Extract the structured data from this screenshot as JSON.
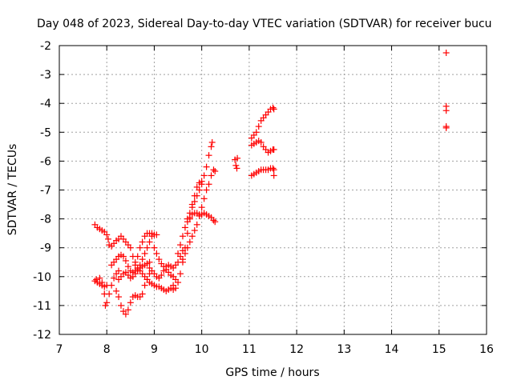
{
  "chart_data": {
    "type": "scatter",
    "title": "Day 048 of 2023, Sidereal Day-to-day VTEC variation (SDTVAR) for receiver bucu",
    "xlabel": "GPS time / hours",
    "ylabel": "SDTVAR / TECUs",
    "xlim": [
      7,
      16
    ],
    "ylim": [
      -12,
      -2
    ],
    "xticks": [
      7,
      8,
      9,
      10,
      11,
      12,
      13,
      14,
      15,
      16
    ],
    "yticks": [
      -2,
      -3,
      -4,
      -5,
      -6,
      -7,
      -8,
      -9,
      -10,
      -11,
      -12
    ],
    "grid": true,
    "marker": "+",
    "color": "#ff0000",
    "series": [
      {
        "name": "SDTVAR",
        "points": [
          [
            7.75,
            -8.2
          ],
          [
            7.8,
            -8.3
          ],
          [
            7.85,
            -8.35
          ],
          [
            7.9,
            -8.4
          ],
          [
            7.95,
            -8.45
          ],
          [
            8.0,
            -8.55
          ],
          [
            8.03,
            -8.7
          ],
          [
            7.75,
            -10.15
          ],
          [
            7.8,
            -10.2
          ],
          [
            7.85,
            -10.25
          ],
          [
            7.9,
            -10.3
          ],
          [
            7.95,
            -10.35
          ],
          [
            8.0,
            -10.3
          ],
          [
            7.78,
            -10.1
          ],
          [
            7.85,
            -10.05
          ],
          [
            7.9,
            -10.2
          ],
          [
            7.95,
            -10.6
          ],
          [
            7.97,
            -11.0
          ],
          [
            8.0,
            -10.9
          ],
          [
            8.05,
            -10.6
          ],
          [
            8.1,
            -10.3
          ],
          [
            8.15,
            -10.05
          ],
          [
            8.2,
            -9.9
          ],
          [
            8.25,
            -9.8
          ],
          [
            8.2,
            -10.5
          ],
          [
            8.25,
            -10.7
          ],
          [
            8.3,
            -11.0
          ],
          [
            8.35,
            -11.2
          ],
          [
            8.4,
            -11.3
          ],
          [
            8.45,
            -11.15
          ],
          [
            8.5,
            -10.9
          ],
          [
            8.55,
            -10.7
          ],
          [
            8.6,
            -10.65
          ],
          [
            8.65,
            -10.7
          ],
          [
            8.7,
            -10.7
          ],
          [
            8.75,
            -10.6
          ],
          [
            8.8,
            -10.3
          ],
          [
            8.85,
            -10.1
          ],
          [
            8.9,
            -9.9
          ],
          [
            8.05,
            -8.9
          ],
          [
            8.1,
            -8.95
          ],
          [
            8.15,
            -8.85
          ],
          [
            8.2,
            -8.75
          ],
          [
            8.25,
            -8.7
          ],
          [
            8.3,
            -8.6
          ],
          [
            8.35,
            -8.7
          ],
          [
            8.4,
            -8.8
          ],
          [
            8.45,
            -8.9
          ],
          [
            8.5,
            -9.0
          ],
          [
            8.55,
            -9.3
          ],
          [
            8.6,
            -9.5
          ],
          [
            8.65,
            -9.7
          ],
          [
            8.7,
            -9.8
          ],
          [
            8.75,
            -9.9
          ],
          [
            8.8,
            -10.0
          ],
          [
            8.85,
            -10.1
          ],
          [
            8.9,
            -10.2
          ],
          [
            8.95,
            -10.25
          ],
          [
            9.0,
            -10.3
          ],
          [
            9.05,
            -10.35
          ],
          [
            9.1,
            -10.35
          ],
          [
            9.15,
            -10.4
          ],
          [
            9.2,
            -10.45
          ],
          [
            9.25,
            -10.5
          ],
          [
            9.3,
            -10.45
          ],
          [
            9.35,
            -10.4
          ],
          [
            9.4,
            -10.3
          ],
          [
            8.1,
            -9.6
          ],
          [
            8.15,
            -9.5
          ],
          [
            8.2,
            -9.4
          ],
          [
            8.25,
            -9.3
          ],
          [
            8.3,
            -9.25
          ],
          [
            8.35,
            -9.3
          ],
          [
            8.4,
            -9.45
          ],
          [
            8.45,
            -9.65
          ],
          [
            8.5,
            -9.8
          ],
          [
            8.55,
            -9.85
          ],
          [
            8.6,
            -9.8
          ],
          [
            8.65,
            -9.75
          ],
          [
            8.7,
            -9.7
          ],
          [
            8.75,
            -9.65
          ],
          [
            8.8,
            -9.6
          ],
          [
            8.85,
            -9.55
          ],
          [
            8.9,
            -9.5
          ],
          [
            8.25,
            -10.1
          ],
          [
            8.3,
            -10.0
          ],
          [
            8.35,
            -9.9
          ],
          [
            8.4,
            -9.85
          ],
          [
            8.45,
            -9.95
          ],
          [
            8.5,
            -10.05
          ],
          [
            8.55,
            -10.0
          ],
          [
            8.6,
            -9.9
          ],
          [
            8.65,
            -9.8
          ],
          [
            8.7,
            -9.6
          ],
          [
            8.75,
            -9.4
          ],
          [
            8.8,
            -9.2
          ],
          [
            8.85,
            -9.0
          ],
          [
            8.9,
            -8.8
          ],
          [
            8.95,
            -8.6
          ],
          [
            9.0,
            -8.55
          ],
          [
            9.05,
            -8.55
          ],
          [
            8.6,
            -9.6
          ],
          [
            8.65,
            -9.3
          ],
          [
            8.7,
            -9.0
          ],
          [
            8.75,
            -8.8
          ],
          [
            8.8,
            -8.6
          ],
          [
            8.85,
            -8.5
          ],
          [
            8.9,
            -8.5
          ],
          [
            8.95,
            -8.5
          ],
          [
            8.9,
            -9.7
          ],
          [
            8.95,
            -9.8
          ],
          [
            9.0,
            -9.9
          ],
          [
            9.05,
            -10.0
          ],
          [
            9.1,
            -10.05
          ],
          [
            9.15,
            -9.95
          ],
          [
            9.2,
            -9.8
          ],
          [
            9.25,
            -9.65
          ],
          [
            9.3,
            -9.6
          ],
          [
            9.35,
            -9.65
          ],
          [
            9.4,
            -9.7
          ],
          [
            9.45,
            -9.6
          ],
          [
            9.5,
            -9.5
          ],
          [
            9.55,
            -9.3
          ],
          [
            9.6,
            -9.1
          ],
          [
            9.0,
            -9.0
          ],
          [
            9.05,
            -9.2
          ],
          [
            9.1,
            -9.4
          ],
          [
            9.15,
            -9.55
          ],
          [
            9.2,
            -9.65
          ],
          [
            9.25,
            -9.75
          ],
          [
            9.3,
            -9.85
          ],
          [
            9.35,
            -9.95
          ],
          [
            9.4,
            -10.0
          ],
          [
            9.45,
            -10.1
          ],
          [
            9.4,
            -10.45
          ],
          [
            9.45,
            -10.4
          ],
          [
            9.5,
            -10.2
          ],
          [
            9.55,
            -9.9
          ],
          [
            9.6,
            -9.5
          ],
          [
            9.65,
            -9.0
          ],
          [
            9.7,
            -8.5
          ],
          [
            9.75,
            -8.0
          ],
          [
            9.8,
            -7.5
          ],
          [
            9.85,
            -7.2
          ],
          [
            9.9,
            -6.9
          ],
          [
            9.95,
            -6.75
          ],
          [
            10.0,
            -6.7
          ],
          [
            9.5,
            -9.2
          ],
          [
            9.55,
            -8.9
          ],
          [
            9.6,
            -8.6
          ],
          [
            9.65,
            -8.3
          ],
          [
            9.7,
            -8.0
          ],
          [
            9.75,
            -7.8
          ],
          [
            9.8,
            -7.6
          ],
          [
            9.85,
            -7.4
          ],
          [
            9.9,
            -7.2
          ],
          [
            9.95,
            -7.0
          ],
          [
            10.0,
            -6.8
          ],
          [
            10.05,
            -6.5
          ],
          [
            10.1,
            -6.2
          ],
          [
            10.15,
            -5.8
          ],
          [
            10.2,
            -5.5
          ],
          [
            10.22,
            -5.35
          ],
          [
            9.7,
            -8.1
          ],
          [
            9.75,
            -7.95
          ],
          [
            9.8,
            -7.85
          ],
          [
            9.85,
            -7.8
          ],
          [
            9.9,
            -7.8
          ],
          [
            9.95,
            -7.85
          ],
          [
            10.0,
            -7.85
          ],
          [
            10.05,
            -7.8
          ],
          [
            10.1,
            -7.85
          ],
          [
            10.15,
            -7.9
          ],
          [
            10.2,
            -7.95
          ],
          [
            10.25,
            -8.05
          ],
          [
            10.28,
            -8.1
          ],
          [
            9.6,
            -9.4
          ],
          [
            9.65,
            -9.2
          ],
          [
            9.7,
            -9.0
          ],
          [
            9.75,
            -8.8
          ],
          [
            9.8,
            -8.6
          ],
          [
            9.85,
            -8.4
          ],
          [
            9.9,
            -8.2
          ],
          [
            9.95,
            -7.9
          ],
          [
            10.0,
            -7.6
          ],
          [
            10.05,
            -7.3
          ],
          [
            10.1,
            -7.0
          ],
          [
            10.15,
            -6.8
          ],
          [
            10.2,
            -6.5
          ],
          [
            10.25,
            -6.3
          ],
          [
            10.28,
            -6.35
          ],
          [
            10.7,
            -5.95
          ],
          [
            10.72,
            -6.15
          ],
          [
            10.74,
            -6.25
          ],
          [
            10.75,
            -5.9
          ],
          [
            11.05,
            -5.2
          ],
          [
            11.1,
            -5.1
          ],
          [
            11.15,
            -5.0
          ],
          [
            11.2,
            -4.8
          ],
          [
            11.25,
            -4.6
          ],
          [
            11.3,
            -4.5
          ],
          [
            11.35,
            -4.4
          ],
          [
            11.4,
            -4.3
          ],
          [
            11.45,
            -4.2
          ],
          [
            11.5,
            -4.15
          ],
          [
            11.52,
            -4.2
          ],
          [
            11.05,
            -5.45
          ],
          [
            11.1,
            -5.4
          ],
          [
            11.15,
            -5.35
          ],
          [
            11.2,
            -5.3
          ],
          [
            11.25,
            -5.35
          ],
          [
            11.3,
            -5.5
          ],
          [
            11.35,
            -5.6
          ],
          [
            11.4,
            -5.7
          ],
          [
            11.45,
            -5.65
          ],
          [
            11.5,
            -5.6
          ],
          [
            11.52,
            -5.6
          ],
          [
            11.05,
            -6.5
          ],
          [
            11.1,
            -6.45
          ],
          [
            11.15,
            -6.4
          ],
          [
            11.2,
            -6.35
          ],
          [
            11.25,
            -6.3
          ],
          [
            11.3,
            -6.3
          ],
          [
            11.35,
            -6.3
          ],
          [
            11.4,
            -6.3
          ],
          [
            11.45,
            -6.25
          ],
          [
            11.5,
            -6.25
          ],
          [
            11.52,
            -6.3
          ],
          [
            11.52,
            -6.5
          ],
          [
            15.15,
            -2.25
          ],
          [
            15.15,
            -4.1
          ],
          [
            15.15,
            -4.25
          ],
          [
            15.15,
            -4.8
          ],
          [
            15.15,
            -4.85
          ]
        ]
      }
    ]
  }
}
